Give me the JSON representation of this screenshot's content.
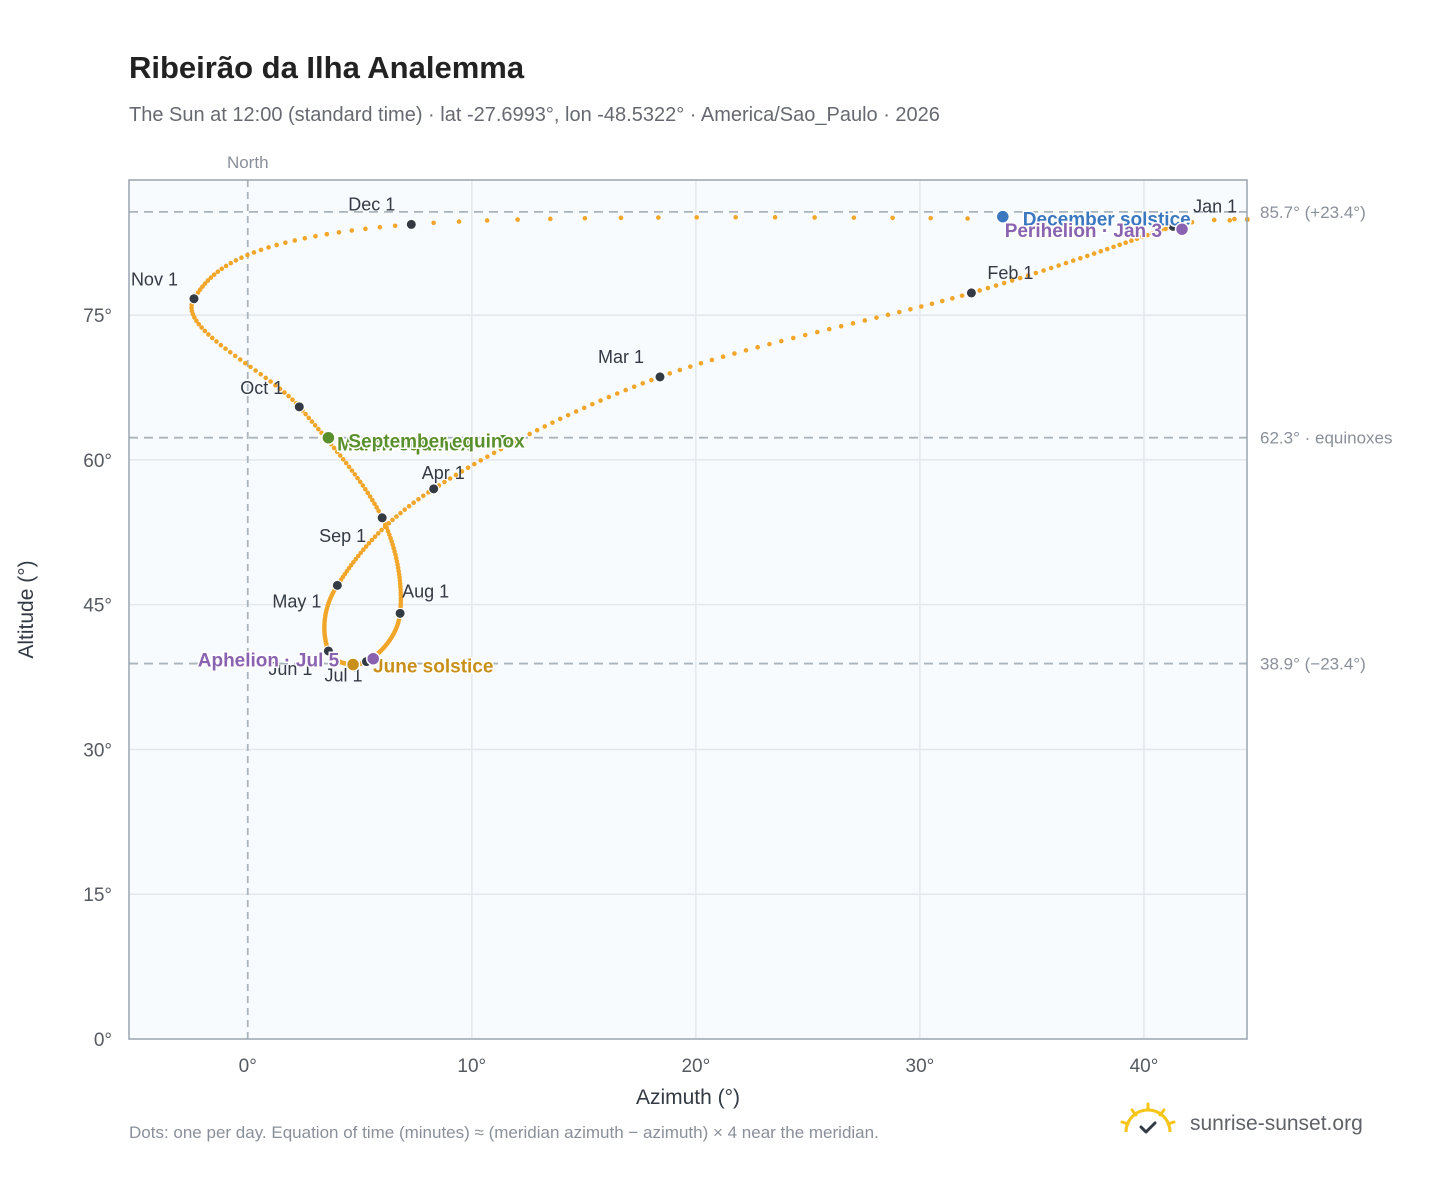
{
  "header": {
    "title": "Ribeirão da Ilha Analemma",
    "subtitle": "The Sun at 12:00 (standard time) · lat -27.6993°, lon -48.5322° · America/Sao_Paulo · 2026"
  },
  "footer": {
    "note": "Dots: one per day. Equation of time (minutes) ≈ (meridian azimuth − azimuth) × 4 near the meridian.",
    "brand": "sunrise-sunset.org"
  },
  "colors": {
    "path": "#f2a629",
    "month_dot": "#333a44",
    "equinox": "#5a8f2e",
    "june_solstice": "#c8901a",
    "december_solstice": "#3b78c0",
    "apsis": "#8a63b0",
    "reference_line": "#aab4bc",
    "grid": "#e3e8ec",
    "plot_bg": "#f8fbfd"
  },
  "chart_data": {
    "type": "scatter",
    "xlabel": "Azimuth (°)",
    "ylabel": "Altitude (°)",
    "xlim": [
      -5.3,
      44.6
    ],
    "ylim": [
      0,
      89
    ],
    "xticks": [
      0,
      10,
      20,
      30,
      40
    ],
    "yticks": [
      0,
      15,
      30,
      45,
      60,
      75
    ],
    "xtick_labels": [
      "0°",
      "10°",
      "20°",
      "30°",
      "40°"
    ],
    "ytick_labels": [
      "0°",
      "15°",
      "30°",
      "45°",
      "60°",
      "75°"
    ],
    "grid": true,
    "north_label": "North",
    "reference_lines": [
      {
        "altitude": 85.7,
        "label": "85.7° (+23.4°)"
      },
      {
        "altitude": 62.3,
        "label": "62.3° · equinoxes"
      },
      {
        "altitude": 38.9,
        "label": "38.9° (−23.4°)"
      }
    ],
    "months": [
      {
        "label": "Jan 1",
        "az": 41.3,
        "alt": 84.2
      },
      {
        "label": "Feb 1",
        "az": 32.3,
        "alt": 77.3
      },
      {
        "label": "Mar 1",
        "az": 18.4,
        "alt": 68.6
      },
      {
        "label": "Apr 1",
        "az": 8.3,
        "alt": 57.0
      },
      {
        "label": "May 1",
        "az": 4.0,
        "alt": 47.0
      },
      {
        "label": "Jun 1",
        "az": 3.6,
        "alt": 40.2
      },
      {
        "label": "Jul 1",
        "az": 5.3,
        "alt": 39.1
      },
      {
        "label": "Aug 1",
        "az": 6.8,
        "alt": 44.1
      },
      {
        "label": "Sep 1",
        "az": 6.0,
        "alt": 54.0
      },
      {
        "label": "Oct 1",
        "az": 2.3,
        "alt": 65.5
      },
      {
        "label": "Nov 1",
        "az": -2.4,
        "alt": 76.7
      },
      {
        "label": "Dec 1",
        "az": 7.3,
        "alt": 84.4
      }
    ],
    "events": [
      {
        "label": "March equinox",
        "az": 11.4,
        "alt": 62.0,
        "kind": "equinox"
      },
      {
        "label": "September equinox",
        "az": 3.6,
        "alt": 62.3,
        "kind": "equinox"
      },
      {
        "label": "June solstice",
        "az": 4.7,
        "alt": 38.8,
        "kind": "june_solstice"
      },
      {
        "label": "December solstice",
        "az": 33.7,
        "alt": 85.2,
        "kind": "december_solstice"
      },
      {
        "label": "Aphelion · Jul 5",
        "az": 5.6,
        "alt": 39.4,
        "kind": "apsis"
      },
      {
        "label": "Perihelion · Jan 3",
        "az": 41.7,
        "alt": 83.9,
        "kind": "apsis"
      }
    ]
  }
}
